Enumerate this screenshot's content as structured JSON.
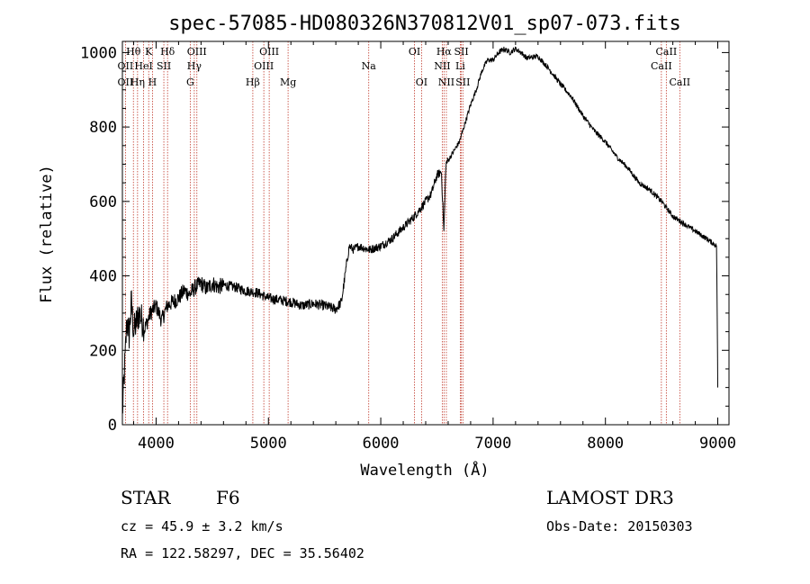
{
  "chart_data": {
    "type": "line",
    "title": "spec-57085-HD080326N370812V01_sp07-073.fits",
    "xlabel": "Wavelength (Å)",
    "ylabel": "Flux (relative)",
    "xlim": [
      3700,
      9100
    ],
    "ylim": [
      0,
      1030
    ],
    "x_ticks": [
      4000,
      5000,
      6000,
      7000,
      8000,
      9000
    ],
    "y_ticks": [
      0,
      200,
      400,
      600,
      800,
      1000
    ],
    "grid": false,
    "series": [
      {
        "x": [
          3700,
          3720,
          3740,
          3760,
          3780,
          3800,
          3850,
          3900,
          3950,
          4000,
          4050,
          4100,
          4150,
          4200,
          4250,
          4300,
          4350,
          4400,
          4450,
          4500,
          4550,
          4600,
          4700,
          4800,
          4900,
          5000,
          5100,
          5200,
          5300,
          5400,
          5500,
          5600,
          5650,
          5700,
          5720,
          5760,
          5800,
          5900,
          6000,
          6100,
          6200,
          6300,
          6350,
          6400,
          6450,
          6500,
          6540,
          6562,
          6580,
          6620,
          6700,
          6750,
          6800,
          6850,
          6900,
          6950,
          7000,
          7050,
          7100,
          7150,
          7200,
          7250,
          7300,
          7400,
          7500,
          7600,
          7700,
          7800,
          7900,
          8000,
          8100,
          8200,
          8300,
          8400,
          8500,
          8600,
          8700,
          8800,
          8900,
          8990,
          9000
        ],
        "values": [
          30,
          150,
          280,
          240,
          330,
          250,
          300,
          260,
          300,
          320,
          280,
          320,
          330,
          340,
          360,
          350,
          370,
          380,
          365,
          380,
          370,
          375,
          370,
          360,
          355,
          340,
          335,
          330,
          320,
          325,
          320,
          310,
          330,
          440,
          480,
          470,
          480,
          470,
          480,
          500,
          530,
          560,
          580,
          600,
          620,
          670,
          680,
          520,
          700,
          720,
          760,
          810,
          860,
          900,
          950,
          980,
          980,
          1000,
          1010,
          1000,
          1010,
          1000,
          985,
          990,
          955,
          915,
          880,
          830,
          790,
          760,
          720,
          690,
          650,
          630,
          600,
          560,
          540,
          520,
          500,
          480,
          100
        ]
      }
    ],
    "spectral_lines": [
      {
        "label": "Hθ",
        "x": 3798,
        "row": 1
      },
      {
        "label": "OII",
        "x": 3727,
        "row": 2
      },
      {
        "label": "OII",
        "x": 3727,
        "row": 3
      },
      {
        "label": "K",
        "x": 3934,
        "row": 1
      },
      {
        "label": "HeI",
        "x": 3889,
        "row": 2
      },
      {
        "label": "Hη",
        "x": 3835,
        "row": 3
      },
      {
        "label": "H",
        "x": 3968,
        "row": 3
      },
      {
        "label": "Hδ",
        "x": 4102,
        "row": 1
      },
      {
        "label": "SII",
        "x": 4069,
        "row": 2
      },
      {
        "label": "OIII",
        "x": 4363,
        "row": 1
      },
      {
        "label": "Hγ",
        "x": 4340,
        "row": 2
      },
      {
        "label": "G",
        "x": 4304,
        "row": 3
      },
      {
        "label": "OIII",
        "x": 5007,
        "row": 1
      },
      {
        "label": "OIII",
        "x": 4959,
        "row": 2
      },
      {
        "label": "Hβ",
        "x": 4861,
        "row": 3
      },
      {
        "label": "Mg",
        "x": 5175,
        "row": 3
      },
      {
        "label": "Na",
        "x": 5893,
        "row": 2
      },
      {
        "label": "OI",
        "x": 6300,
        "row": 1
      },
      {
        "label": "OI",
        "x": 6363,
        "row": 3
      },
      {
        "label": "Hα",
        "x": 6563,
        "row": 1
      },
      {
        "label": "SII",
        "x": 6717,
        "row": 1
      },
      {
        "label": "NII",
        "x": 6548,
        "row": 2
      },
      {
        "label": "Li",
        "x": 6708,
        "row": 2
      },
      {
        "label": "NII",
        "x": 6584,
        "row": 3
      },
      {
        "label": "SII",
        "x": 6731,
        "row": 3
      },
      {
        "label": "CaII",
        "x": 8542,
        "row": 1
      },
      {
        "label": "CaII",
        "x": 8498,
        "row": 2
      },
      {
        "label": "CaII",
        "x": 8662,
        "row": 3
      }
    ]
  },
  "info": {
    "object_class": "STAR",
    "subclass": "F6",
    "survey": "LAMOST DR3",
    "cz": "cz = 45.9 ± 3.2 km/s",
    "obs_date": "Obs-Date: 20150303",
    "coords": "RA = 122.58297, DEC =  35.56402"
  },
  "colors": {
    "line_marker": "#c0392b",
    "spectrum": "#000000"
  }
}
